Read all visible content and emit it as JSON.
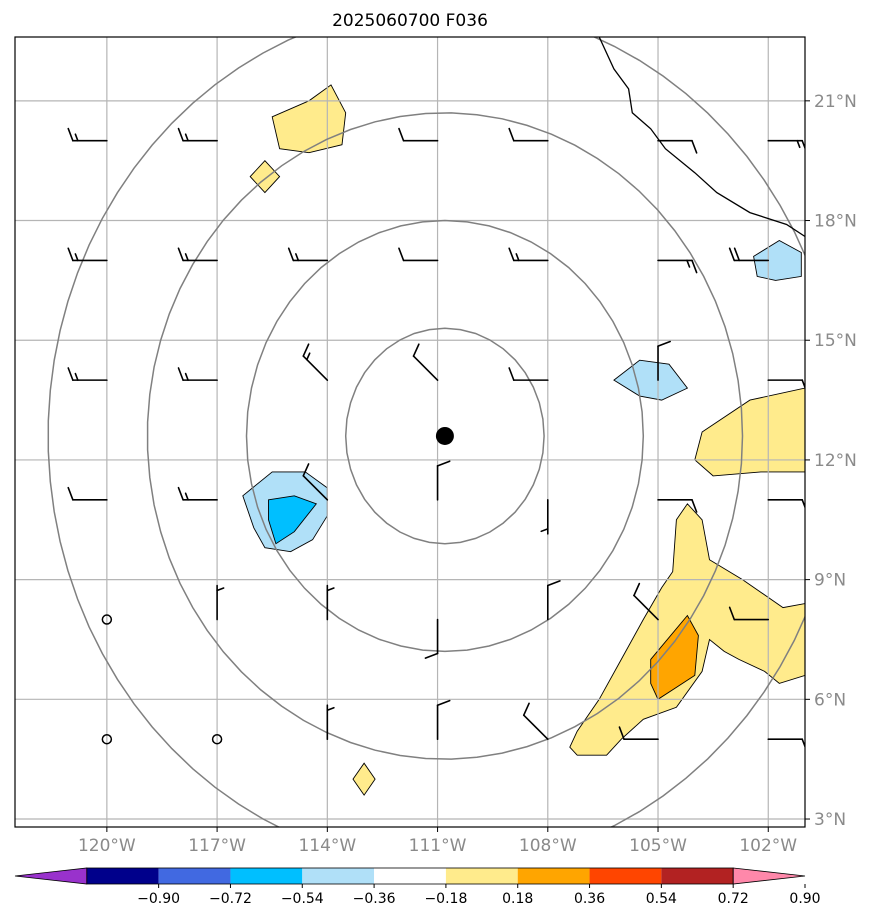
{
  "title": "2025060700 F036",
  "chart_data": {
    "type": "heatmap",
    "title": "2025060700 F036",
    "map_extent": {
      "lon": [
        -122.5,
        -101.0
      ],
      "lat": [
        2.8,
        22.6
      ]
    },
    "x_ticks": [
      "120°W",
      "117°W",
      "114°W",
      "111°W",
      "108°W",
      "105°W",
      "102°W"
    ],
    "x_tick_values": [
      -120,
      -117,
      -114,
      -111,
      -108,
      -105,
      -102
    ],
    "y_ticks": [
      "21°N",
      "18°N",
      "15°N",
      "12°N",
      "9°N",
      "6°N",
      "3°N"
    ],
    "y_tick_values": [
      21,
      18,
      15,
      12,
      9,
      6,
      3
    ],
    "colorbar": {
      "ticks": [
        "−0.90",
        "−0.72",
        "−0.54",
        "−0.36",
        "−0.18",
        "0.18",
        "0.36",
        "0.54",
        "0.72",
        "0.90"
      ],
      "levels": [
        -0.9,
        -0.72,
        -0.54,
        -0.36,
        -0.18,
        0.18,
        0.36,
        0.54,
        0.72,
        0.9
      ],
      "colors": [
        "#9932cc",
        "#00008b",
        "#4169e1",
        "#00bfff",
        "#b0e0f8",
        "#ffffff",
        "#ffeb8c",
        "#ffa500",
        "#ff4500",
        "#b22222",
        "#ff88aa"
      ],
      "extend": "both"
    },
    "storm_center": {
      "lon": -110.8,
      "lat": 12.6
    },
    "range_rings_deg": [
      2.7,
      5.4,
      8.1,
      10.8
    ],
    "shaded_regions": [
      {
        "level": "0.18–0.36",
        "color": "#ffeb8c",
        "points": [
          [
            -115.5,
            20.6
          ],
          [
            -114.5,
            21.0
          ],
          [
            -113.9,
            21.4
          ],
          [
            -113.5,
            20.7
          ],
          [
            -113.6,
            19.9
          ],
          [
            -114.5,
            19.7
          ],
          [
            -115.3,
            19.8
          ]
        ]
      },
      {
        "level": "0.18–0.36",
        "color": "#ffeb8c",
        "points": [
          [
            -116.1,
            19.1
          ],
          [
            -115.7,
            19.5
          ],
          [
            -115.3,
            19.1
          ],
          [
            -115.7,
            18.7
          ]
        ]
      },
      {
        "level": "0.18–0.36",
        "color": "#ffeb8c",
        "points": [
          [
            -113.3,
            4.0
          ],
          [
            -113.0,
            4.4
          ],
          [
            -112.7,
            4.0
          ],
          [
            -113.0,
            3.6
          ]
        ]
      },
      {
        "level": "0.18–0.36",
        "color": "#ffeb8c",
        "points": [
          [
            -103.8,
            12.7
          ],
          [
            -102.5,
            13.5
          ],
          [
            -101.0,
            13.8
          ],
          [
            -101.0,
            11.7
          ],
          [
            -102.2,
            11.7
          ],
          [
            -103.5,
            11.6
          ],
          [
            -104.0,
            12.0
          ]
        ]
      },
      {
        "level": "0.18–0.36",
        "color": "#ffeb8c",
        "points": [
          [
            -104.5,
            10.5
          ],
          [
            -104.2,
            10.9
          ],
          [
            -103.8,
            10.5
          ],
          [
            -103.6,
            9.5
          ],
          [
            -102.7,
            9.0
          ],
          [
            -101.6,
            8.3
          ],
          [
            -101.0,
            8.4
          ],
          [
            -101.0,
            6.6
          ],
          [
            -101.7,
            6.4
          ],
          [
            -102.1,
            6.7
          ],
          [
            -102.8,
            7.0
          ],
          [
            -103.2,
            7.2
          ],
          [
            -103.6,
            7.5
          ],
          [
            -103.8,
            6.7
          ],
          [
            -104.5,
            5.8
          ],
          [
            -105.4,
            5.5
          ],
          [
            -106.0,
            5.0
          ],
          [
            -106.4,
            4.6
          ],
          [
            -107.2,
            4.6
          ],
          [
            -107.4,
            4.8
          ],
          [
            -107.2,
            5.2
          ],
          [
            -106.6,
            6.0
          ],
          [
            -106.0,
            7.0
          ],
          [
            -105.4,
            8.0
          ],
          [
            -104.9,
            8.8
          ],
          [
            -104.6,
            9.2
          ]
        ]
      },
      {
        "level": "0.36–0.54",
        "color": "#ffa500",
        "points": [
          [
            -105.2,
            7.0
          ],
          [
            -104.2,
            8.1
          ],
          [
            -103.9,
            7.6
          ],
          [
            -104.0,
            6.6
          ],
          [
            -104.5,
            6.3
          ],
          [
            -105.0,
            6.0
          ],
          [
            -105.2,
            6.4
          ]
        ]
      },
      {
        "level": "-0.36–-0.18",
        "color": "#b0e0f8",
        "points": [
          [
            -116.3,
            11.1
          ],
          [
            -115.5,
            11.7
          ],
          [
            -114.6,
            11.7
          ],
          [
            -114.0,
            11.3
          ],
          [
            -114.0,
            10.6
          ],
          [
            -114.4,
            10.0
          ],
          [
            -115.0,
            9.7
          ],
          [
            -115.7,
            9.8
          ],
          [
            -116.0,
            10.3
          ]
        ]
      },
      {
        "level": "-0.36–-0.18",
        "color": "#b0e0f8",
        "points": [
          [
            -106.2,
            14.0
          ],
          [
            -105.5,
            14.5
          ],
          [
            -104.7,
            14.4
          ],
          [
            -104.2,
            13.8
          ],
          [
            -104.9,
            13.5
          ],
          [
            -105.5,
            13.6
          ]
        ]
      },
      {
        "level": "-0.36–-0.18",
        "color": "#b0e0f8",
        "points": [
          [
            -102.4,
            17.1
          ],
          [
            -101.7,
            17.5
          ],
          [
            -101.1,
            17.2
          ],
          [
            -101.1,
            16.6
          ],
          [
            -101.8,
            16.5
          ],
          [
            -102.3,
            16.6
          ]
        ]
      },
      {
        "level": "-0.54–-0.36",
        "color": "#00bfff",
        "points": [
          [
            -115.6,
            11.0
          ],
          [
            -114.9,
            11.1
          ],
          [
            -114.3,
            10.9
          ],
          [
            -114.9,
            10.2
          ],
          [
            -115.4,
            9.9
          ],
          [
            -115.6,
            10.5
          ]
        ]
      }
    ],
    "wind_barbs": [
      {
        "lon": -120,
        "lat": 20,
        "dir": "W",
        "kt": 15
      },
      {
        "lon": -117,
        "lat": 20,
        "dir": "W",
        "kt": 15
      },
      {
        "lon": -111,
        "lat": 20,
        "dir": "W",
        "kt": 10
      },
      {
        "lon": -108,
        "lat": 20,
        "dir": "W",
        "kt": 10
      },
      {
        "lon": -105,
        "lat": 20,
        "dir": "E",
        "kt": 10
      },
      {
        "lon": -102,
        "lat": 20,
        "dir": "E",
        "kt": 15
      },
      {
        "lon": -120,
        "lat": 17,
        "dir": "W",
        "kt": 15
      },
      {
        "lon": -117,
        "lat": 17,
        "dir": "W",
        "kt": 15
      },
      {
        "lon": -114,
        "lat": 17,
        "dir": "W",
        "kt": 15
      },
      {
        "lon": -111,
        "lat": 17,
        "dir": "W",
        "kt": 10
      },
      {
        "lon": -108,
        "lat": 17,
        "dir": "W",
        "kt": 15
      },
      {
        "lon": -105,
        "lat": 17,
        "dir": "E",
        "kt": 15
      },
      {
        "lon": -102,
        "lat": 17,
        "dir": "W",
        "kt": 20
      },
      {
        "lon": -120,
        "lat": 14,
        "dir": "W",
        "kt": 15
      },
      {
        "lon": -117,
        "lat": 14,
        "dir": "W",
        "kt": 15
      },
      {
        "lon": -114,
        "lat": 14,
        "dir": "NW",
        "kt": 15
      },
      {
        "lon": -111,
        "lat": 14,
        "dir": "NW",
        "kt": 10
      },
      {
        "lon": -108,
        "lat": 14,
        "dir": "W",
        "kt": 10
      },
      {
        "lon": -105,
        "lat": 14,
        "dir": "N",
        "kt": 10
      },
      {
        "lon": -102,
        "lat": 14,
        "dir": "E",
        "kt": 10
      },
      {
        "lon": -120,
        "lat": 11,
        "dir": "W",
        "kt": 10
      },
      {
        "lon": -117,
        "lat": 11,
        "dir": "W",
        "kt": 15
      },
      {
        "lon": -114,
        "lat": 11,
        "dir": "NW",
        "kt": 10
      },
      {
        "lon": -111,
        "lat": 11,
        "dir": "N",
        "kt": 10
      },
      {
        "lon": -108,
        "lat": 11,
        "dir": "S",
        "kt": 5
      },
      {
        "lon": -105,
        "lat": 11,
        "dir": "E",
        "kt": 10
      },
      {
        "lon": -102,
        "lat": 11,
        "dir": "E",
        "kt": 10
      },
      {
        "lon": -120,
        "lat": 8,
        "dir": "calm",
        "kt": 0
      },
      {
        "lon": -117,
        "lat": 8,
        "dir": "N",
        "kt": 5
      },
      {
        "lon": -114,
        "lat": 8,
        "dir": "N",
        "kt": 5
      },
      {
        "lon": -111,
        "lat": 8,
        "dir": "S",
        "kt": 10
      },
      {
        "lon": -108,
        "lat": 8,
        "dir": "N",
        "kt": 10
      },
      {
        "lon": -105,
        "lat": 8,
        "dir": "NW",
        "kt": 10
      },
      {
        "lon": -102,
        "lat": 8,
        "dir": "W",
        "kt": 10
      },
      {
        "lon": -120,
        "lat": 5,
        "dir": "calm",
        "kt": 0
      },
      {
        "lon": -117,
        "lat": 5,
        "dir": "calm",
        "kt": 0
      },
      {
        "lon": -114,
        "lat": 5,
        "dir": "N",
        "kt": 5
      },
      {
        "lon": -111,
        "lat": 5,
        "dir": "N",
        "kt": 10
      },
      {
        "lon": -108,
        "lat": 5,
        "dir": "NW",
        "kt": 10
      },
      {
        "lon": -105,
        "lat": 5,
        "dir": "W",
        "kt": 10
      },
      {
        "lon": -102,
        "lat": 5,
        "dir": "E",
        "kt": 10
      }
    ],
    "coastline": [
      [
        -106.6,
        22.6
      ],
      [
        -106.2,
        21.8
      ],
      [
        -105.8,
        21.3
      ],
      [
        -105.7,
        20.7
      ],
      [
        -105.2,
        20.3
      ],
      [
        -104.8,
        19.8
      ],
      [
        -104.0,
        19.2
      ],
      [
        -103.4,
        18.7
      ],
      [
        -102.5,
        18.2
      ],
      [
        -101.5,
        17.9
      ],
      [
        -101.0,
        17.6
      ]
    ]
  }
}
